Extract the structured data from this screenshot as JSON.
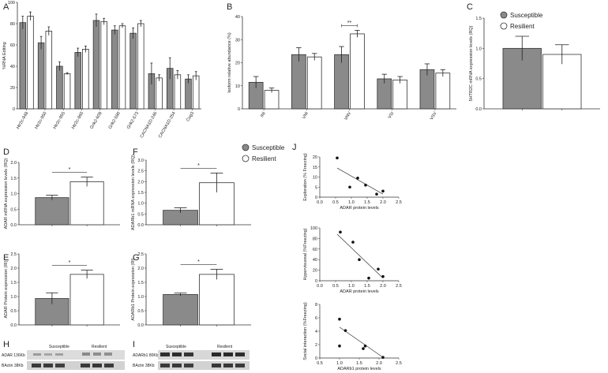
{
  "legend_top": {
    "susceptible": "Susceptible",
    "resilient": "Resilient"
  },
  "legend_mid": {
    "susceptible": "Susceptible",
    "resilient": "Resilient"
  },
  "colors": {
    "susceptible": "#8a8a8a",
    "resilient": "#ffffff",
    "stroke": "#333333"
  },
  "panels": {
    "A": {
      "letter": "A"
    },
    "B": {
      "letter": "B"
    },
    "C": {
      "letter": "C"
    },
    "D": {
      "letter": "D"
    },
    "E": {
      "letter": "E"
    },
    "F": {
      "letter": "F"
    },
    "G": {
      "letter": "G"
    },
    "H": {
      "letter": "H"
    },
    "I": {
      "letter": "I"
    },
    "J": {
      "letter": "J"
    }
  },
  "chart_data": [
    {
      "id": "A",
      "type": "bar",
      "ylabel": "%RNA Editing",
      "ylim": [
        0,
        100
      ],
      "yticks": [
        0,
        20,
        40,
        60,
        80,
        100
      ],
      "categories": [
        "Htr2c-948",
        "Htr2c-950",
        "Htr2c-955",
        "Htr2c-960",
        "Grik2-608",
        "Grik2-580",
        "Grik2-573",
        "CACNA1D-246",
        "CACNA1D-254",
        "Cog3"
      ],
      "series": [
        {
          "name": "Susceptible",
          "values": [
            81,
            62,
            40,
            53,
            83,
            74,
            71,
            33,
            38,
            28
          ],
          "errors": [
            6,
            6,
            4,
            4,
            6,
            4,
            5,
            10,
            10,
            4
          ]
        },
        {
          "name": "Resilient",
          "values": [
            87,
            73,
            33,
            56,
            82,
            78,
            80,
            29,
            32,
            31
          ],
          "errors": [
            4,
            4,
            1,
            3,
            3,
            2,
            3,
            3,
            4,
            4
          ]
        }
      ]
    },
    {
      "id": "B",
      "type": "bar",
      "ylabel": "Isoform relative abundance (%)",
      "ylim": [
        0,
        40
      ],
      "yticks": [
        0,
        10,
        20,
        30,
        40
      ],
      "categories": [
        "INI",
        "VNI",
        "VNV",
        "VSI",
        "VSV"
      ],
      "series": [
        {
          "name": "Susceptible",
          "values": [
            11.5,
            23.5,
            23.5,
            13,
            17
          ],
          "errors": [
            2.5,
            3,
            3.5,
            2,
            2.5
          ]
        },
        {
          "name": "Resilient",
          "values": [
            8,
            22.5,
            32.5,
            12.5,
            15.5
          ],
          "errors": [
            1,
            1.5,
            1.5,
            1.5,
            1.5
          ]
        }
      ],
      "annotation": "**"
    },
    {
      "id": "C",
      "type": "bar",
      "ylabel": "5HTR2C mRNA expression levels (RQ)",
      "ylim": [
        0,
        1.5
      ],
      "yticks": [
        "0.0",
        "0.5",
        "1.0",
        "1.5"
      ],
      "series": [
        {
          "name": "Susceptible",
          "values": [
            1.0
          ],
          "errors": [
            0.2
          ]
        },
        {
          "name": "Resilient",
          "values": [
            0.9
          ],
          "errors": [
            0.16
          ]
        }
      ]
    },
    {
      "id": "D",
      "type": "bar",
      "ylabel": "ADAR mRNA expression levels (RQ)",
      "ylim": [
        0,
        2.0
      ],
      "yticks": [
        "0.0",
        "0.5",
        "1.0",
        "1.5",
        "2.0"
      ],
      "series": [
        {
          "name": "Susceptible",
          "values": [
            0.87
          ],
          "errors": [
            0.08
          ]
        },
        {
          "name": "Resilient",
          "values": [
            1.38
          ],
          "errors": [
            0.15
          ]
        }
      ],
      "annotation": "*"
    },
    {
      "id": "E",
      "type": "bar",
      "ylabel": "ADAR Protein expression (RI)",
      "ylim": [
        0,
        2.5
      ],
      "yticks": [
        "0.0",
        "0.5",
        "1.0",
        "1.5",
        "2.0",
        "2.5"
      ],
      "series": [
        {
          "name": "Susceptible",
          "values": [
            0.93
          ],
          "errors": [
            0.2
          ]
        },
        {
          "name": "Resilient",
          "values": [
            1.78
          ],
          "errors": [
            0.15
          ]
        }
      ],
      "annotation": "*"
    },
    {
      "id": "F",
      "type": "bar",
      "ylabel": "ADARb1 mRNA expression levels (RQ)",
      "ylim": [
        0,
        3.0
      ],
      "yticks": [
        "0.0",
        "0.5",
        "1.0",
        "1.5",
        "2.0",
        "2.5",
        "3.0"
      ],
      "series": [
        {
          "name": "Susceptible",
          "values": [
            0.67
          ],
          "errors": [
            0.12
          ]
        },
        {
          "name": "Resilient",
          "values": [
            1.95
          ],
          "errors": [
            0.45
          ]
        }
      ],
      "annotation": "*"
    },
    {
      "id": "G",
      "type": "bar",
      "ylabel": "ADARb1 Protein expression (RI)",
      "ylim": [
        0,
        2.5
      ],
      "yticks": [
        "0.0",
        "0.5",
        "1.0",
        "1.5",
        "2.0",
        "2.5"
      ],
      "series": [
        {
          "name": "Susceptible",
          "values": [
            1.07
          ],
          "errors": [
            0.05
          ]
        },
        {
          "name": "Resilient",
          "values": [
            1.78
          ],
          "errors": [
            0.18
          ]
        }
      ],
      "annotation": "*"
    },
    {
      "id": "J1",
      "type": "scatter",
      "xlabel": "ADAR protein levels",
      "ylabel": "Exploration (% Freezing)",
      "xlim": [
        0,
        2.5
      ],
      "ylim": [
        0,
        20
      ],
      "xticks": [
        "0.0",
        "0.5",
        "1.0",
        "1.5",
        "2.0",
        "2.5"
      ],
      "yticks": [
        0,
        5,
        10,
        15,
        20
      ],
      "points": [
        [
          0.55,
          19.5
        ],
        [
          0.95,
          5
        ],
        [
          1.2,
          9.5
        ],
        [
          1.45,
          6
        ],
        [
          1.8,
          1.5
        ],
        [
          2.0,
          3
        ]
      ],
      "fit": [
        [
          0.55,
          14.5
        ],
        [
          2.0,
          1.5
        ]
      ]
    },
    {
      "id": "J2",
      "type": "scatter",
      "xlabel": "ADAR protein levels",
      "ylabel": "Hypervisuosal (%Freezing)",
      "xlim": [
        0,
        2.5
      ],
      "ylim": [
        0,
        100
      ],
      "xticks": [
        "0.0",
        "0.5",
        "1.0",
        "1.5",
        "2.0",
        "2.5"
      ],
      "yticks": [
        0,
        20,
        40,
        60,
        80,
        100
      ],
      "points": [
        [
          0.65,
          92
        ],
        [
          1.05,
          73
        ],
        [
          1.25,
          40
        ],
        [
          1.55,
          5
        ],
        [
          1.85,
          22
        ],
        [
          2.0,
          8
        ]
      ],
      "fit": [
        [
          0.55,
          88
        ],
        [
          2.0,
          5
        ]
      ]
    },
    {
      "id": "J3",
      "type": "scatter",
      "xlabel": "ADARb1 protein levels",
      "ylabel": "Social interaction (%Freezing)",
      "xlim": [
        0.5,
        2.5
      ],
      "ylim": [
        0,
        8
      ],
      "xticks": [
        "0.5",
        "1.0",
        "1.5",
        "2.0",
        "2.5"
      ],
      "yticks": [
        0,
        2,
        4,
        6,
        8
      ],
      "points": [
        [
          1.0,
          5.8
        ],
        [
          1.0,
          1.8
        ],
        [
          1.15,
          4.1
        ],
        [
          1.6,
          1.4
        ],
        [
          1.65,
          1.8
        ],
        [
          2.1,
          0.1
        ]
      ],
      "fit": [
        [
          1.0,
          4.6
        ],
        [
          2.1,
          0.1
        ]
      ]
    }
  ],
  "blots": {
    "H": {
      "left_label": "Susceptible",
      "right_label": "Resilient",
      "row1": "ADAR 136Kb",
      "row2": "BActin 38Kb"
    },
    "I": {
      "left_label": "Susceptible",
      "right_label": "Resilient",
      "row1": "ADARb1 80Kb",
      "row2": "BActin 38Kb"
    }
  }
}
